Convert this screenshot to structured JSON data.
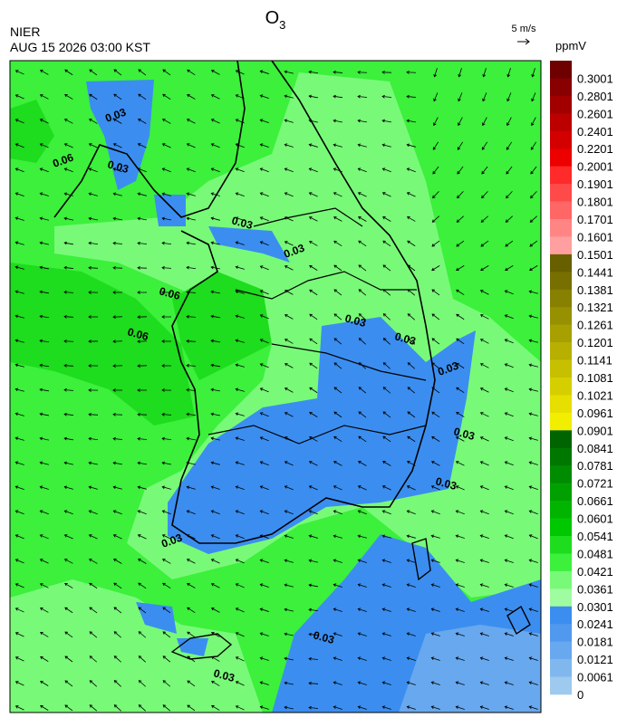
{
  "header": {
    "title": "O",
    "title_subscript": "3",
    "agency": "NIER",
    "datetime": "AUG 15 2026 03:00 KST",
    "wind_reference": "5 m/s"
  },
  "colorbar": {
    "unit": "ppmV",
    "labels": [
      0.3001,
      0.2801,
      0.2601,
      0.2401,
      0.2201,
      0.2001,
      0.1901,
      0.1801,
      0.1701,
      0.1601,
      0.1501,
      0.1441,
      0.1381,
      0.1321,
      0.1261,
      0.1201,
      0.1141,
      0.1081,
      0.1021,
      0.0961,
      0.0901,
      0.0841,
      0.0781,
      0.0721,
      0.0661,
      0.0601,
      0.0541,
      0.0481,
      0.0421,
      0.0361,
      0.0301,
      0.0241,
      0.0181,
      0.0121,
      0.0061,
      0
    ],
    "colors": [
      "#6e0000",
      "#880000",
      "#a20000",
      "#bc0000",
      "#d40000",
      "#ec0000",
      "#ff2a2a",
      "#ff4a4a",
      "#ff6666",
      "#ff8585",
      "#ff9f9f",
      "#675f00",
      "#776f00",
      "#878000",
      "#979000",
      "#a7a000",
      "#b7b000",
      "#c7c000",
      "#d6cf00",
      "#e6df00",
      "#f2ee00",
      "#006400",
      "#007800",
      "#008c00",
      "#00a000",
      "#00b400",
      "#00c800",
      "#1edc1e",
      "#3cf03c",
      "#78fa78",
      "#a0fca0",
      "#3b8ef0",
      "#5199ee",
      "#68a8ee",
      "#80b8ee",
      "#9dcaee"
    ]
  },
  "contour_labels": [
    "0.03",
    "0.03",
    "0.03",
    "0.03",
    "0.03",
    "0.03",
    "0.03",
    "0.03",
    "0.03",
    "0.03",
    "0.03",
    "0.03",
    "0.06",
    "0.06",
    "0.06"
  ]
}
